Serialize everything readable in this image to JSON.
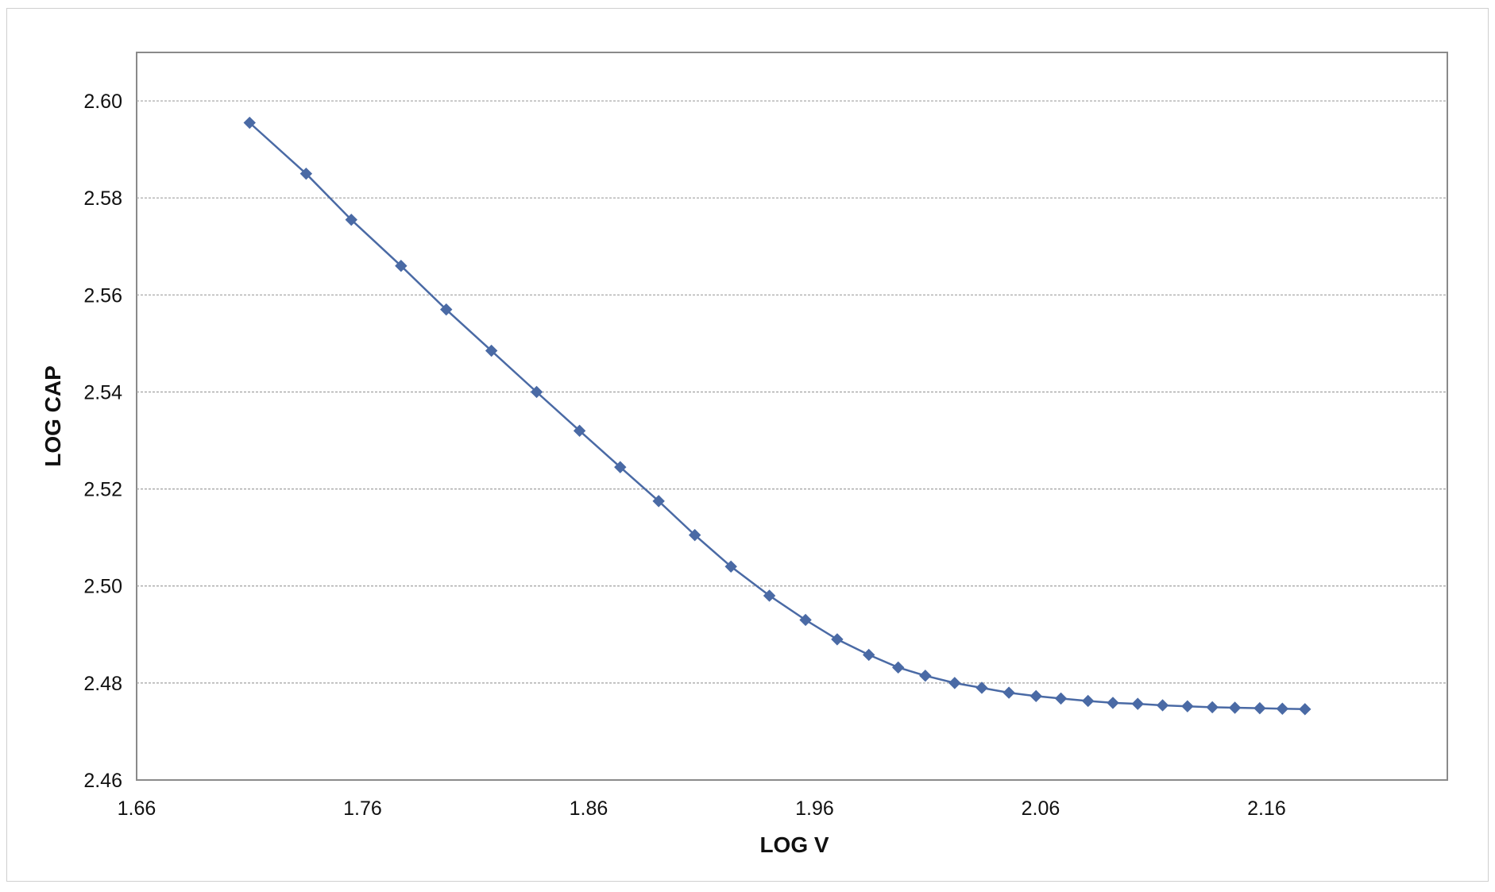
{
  "chart_data": {
    "type": "line",
    "title": "",
    "xlabel": "LOG V",
    "ylabel": "LOG CAP",
    "xlim": [
      1.66,
      2.24
    ],
    "ylim": [
      2.46,
      2.61
    ],
    "x_ticks": [
      "1.66",
      "1.76",
      "1.86",
      "1.96",
      "2.06",
      "2.16"
    ],
    "y_ticks": [
      "2.46",
      "2.48",
      "2.50",
      "2.52",
      "2.54",
      "2.56",
      "2.58",
      "2.60"
    ],
    "grid": "horizontal",
    "legend": "none",
    "series": [
      {
        "marker": "diamond",
        "color": "#4a6aa5",
        "x": [
          1.71,
          1.735,
          1.755,
          1.777,
          1.797,
          1.817,
          1.837,
          1.856,
          1.874,
          1.891,
          1.907,
          1.923,
          1.94,
          1.956,
          1.97,
          1.984,
          1.997,
          2.009,
          2.022,
          2.034,
          2.046,
          2.058,
          2.069,
          2.081,
          2.092,
          2.103,
          2.114,
          2.125,
          2.136,
          2.146,
          2.157,
          2.167,
          2.177
        ],
        "y": [
          2.5955,
          2.585,
          2.5755,
          2.566,
          2.557,
          2.5485,
          2.54,
          2.532,
          2.5245,
          2.5175,
          2.5105,
          2.504,
          2.498,
          2.493,
          2.489,
          2.4858,
          2.4832,
          2.4815,
          2.48,
          2.479,
          2.478,
          2.4773,
          2.4768,
          2.4763,
          2.4759,
          2.4757,
          2.4754,
          2.4752,
          2.475,
          2.4749,
          2.4748,
          2.4747,
          2.4746
        ]
      }
    ]
  },
  "colors": {
    "series": "#4a6aa5",
    "gridline": "#a0a0a0",
    "plot_border": "#8a8a8a"
  }
}
